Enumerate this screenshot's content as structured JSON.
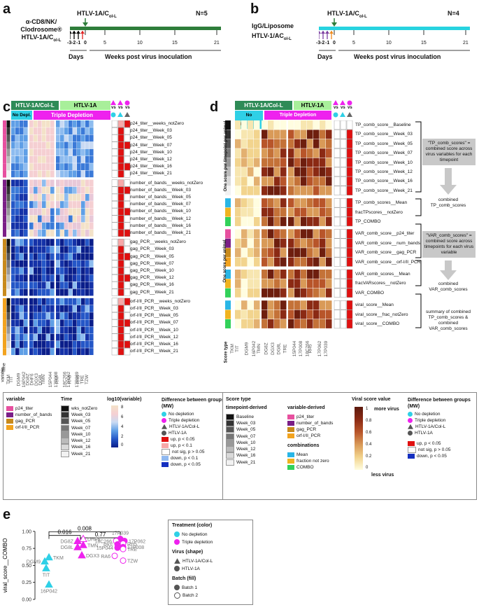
{
  "panel_a": {
    "letter": "a",
    "treatment_line1": "α-CD8/NK/",
    "treatment_line2": "Clodrosome®",
    "treatment_line3": "HTLV-1A/C",
    "treatment_line3_sub": "ol-L",
    "virus_label": "HTLV-1A/C",
    "virus_sub": "ol-L",
    "n": "N=5",
    "ticks_days": [
      "-3",
      "-2",
      "-1",
      "0"
    ],
    "ticks_weeks": [
      "5",
      "10",
      "15",
      "21"
    ],
    "days_label": "Days",
    "weeks_label": "Weeks post virus inoculation",
    "bar_color": "#2e7d3a"
  },
  "panel_b": {
    "letter": "b",
    "treatment_line1": "IgG/Liposome",
    "treatment_line2": "HTLV-1/AC",
    "treatment_line2_sub": "ol-L",
    "virus_label": "HTLV-1A/C",
    "virus_sub": "ol-L",
    "n": "N=4",
    "ticks_days": [
      "-3",
      "-2",
      "-1",
      "0"
    ],
    "ticks_weeks": [
      "5",
      "10",
      "15",
      "21"
    ],
    "days_label": "Days",
    "weeks_label": "Weeks post virus inoculation",
    "bar_color": "#27d3e0"
  },
  "panel_c": {
    "letter": "c",
    "header_virus1": "HTLV-1A/Col-L",
    "header_virus2": "HTLV-1A",
    "header_nodepl": "No Depl.",
    "header_triple": "Triple Depletion",
    "vs_labels": [
      "vs",
      "vs",
      "vs"
    ],
    "row_labels": [
      "p24_titer__weeks_notZero",
      "p24_titer__Week_03",
      "p24_titer__Week_05",
      "p24_titer__Week_07",
      "p24_titer__Week_10",
      "p24_titer__Week_12",
      "p24_titer__Week_16",
      "p24_titer__Week_21",
      "number_of_bands__weeks_notZero",
      "number_of_bands__Week_03",
      "number_of_bands__Week_05",
      "number_of_bands__Week_07",
      "number_of_bands__Week_10",
      "number_of_bands__Week_12",
      "number_of_bands__Week_16",
      "number_of_bands__Week_21",
      "gag_PCR__weeks_notZero",
      "gag_PCR__Week_03",
      "gag_PCR__Week_05",
      "gag_PCR__Week_07",
      "gag_PCR__Week_10",
      "gag_PCR__Week_12",
      "gag_PCR__Week_16",
      "gag_PCR__Week_21",
      "orf-I/II_PCR__weeks_notZero",
      "orf-I/II_PCR__Week_03",
      "orf-I/II_PCR__Week_05",
      "orf-I/II_PCR__Week_07",
      "orf-I/II_PCR__Week_10",
      "orf-I/II_PCR__Week_12",
      "orf-I/II_PCR__Week_16",
      "orf-I/II_PCR__Week_21"
    ],
    "col_labels": [
      "TKM",
      "TIT",
      "DGM9",
      "16P042",
      "DG8Z",
      "DHF6",
      "DGX3",
      "DG8L",
      "TMN",
      "15P044",
      "17P008",
      "RKF",
      "18C266",
      "17P062",
      "RA6",
      "17P039",
      "RH5",
      "TRE",
      "TZW"
    ],
    "side_labels": [
      "variable",
      "Time"
    ],
    "legend": {
      "variable_title": "variable",
      "variable_items": [
        "p24_titer",
        "number_of_bands",
        "gag_PCR",
        "orf-I/II_PCR"
      ],
      "variable_colors": [
        "#e7509f",
        "#7b1f87",
        "#c88a1c",
        "#f2a31f"
      ],
      "time_title": "Time",
      "time_items": [
        "wks_notZero",
        "Week_03",
        "Week_05",
        "Week_07",
        "Week_10",
        "Week_12",
        "Week_16",
        "Week_21"
      ],
      "time_colors": [
        "#111111",
        "#333333",
        "#555555",
        "#777777",
        "#999999",
        "#bbbbbb",
        "#d9d9d9",
        "#f2f2f2"
      ],
      "scale_title": "log10(variable)",
      "scale_ticks": [
        "8",
        "6",
        "4",
        "2",
        "0"
      ],
      "diff_title": "Difference between groups (MW)",
      "diff_items": [
        "No depletion",
        "Triple depletion",
        "HTLV-1A/Col-L",
        "HTLV-1A",
        "up, p < 0.05",
        "up, p < 0.1",
        "not sig, p > 0.05",
        "down, p < 0.1",
        "down, p < 0.05"
      ]
    }
  },
  "panel_d": {
    "letter": "d",
    "header_virus1": "HTLV-1A/Col-L",
    "header_virus2": "HTLV-1A",
    "header_nodepl": "No Depletion",
    "header_triple": "Triple Depletion",
    "vs_labels": [
      "vs",
      "vs",
      "vs"
    ],
    "group_labels": [
      "One score per timepoint per animal",
      "One score per animal"
    ],
    "row_labels": [
      "TP_comb_score__Baseline",
      "TP_comb_score__Week_03",
      "TP_comb_score__Week_05",
      "TP_comb_score__Week_07",
      "TP_comb_score__Week_10",
      "TP_comb_score__Week_12",
      "TP_comb_score__Week_16",
      "TP_comb_score__Week_21",
      "TP_comb_scores__Mean",
      "fracTPscores__notZero",
      "TP_COMBO",
      "VAR_comb_score__p24_titer",
      "VAR_comb_score__num_bands",
      "VAR_comb_score__gag_PCR",
      "VAR_comb_score__orf-I/II_PCR",
      "VAR_comb_scores__Mean",
      "fracVARscores__notZero",
      "VAR_COMBO",
      "viral_score__Mean",
      "viral_score__frac_notZero",
      "viral_score__COMBO"
    ],
    "col_labels": [
      "TKM",
      "TIT",
      "DGM9",
      "16P042",
      "TMN",
      "DG8Z",
      "DGX3",
      "DG8L",
      "TRE",
      "15P044",
      "17P008",
      "18C266",
      "RH5",
      "17P062",
      "17P039"
    ],
    "score_type_label": "Score type",
    "annot1_text": "\"TP_comb_scores\" = combined score across virus variables for each timepoint",
    "annot1_result": "combined TP_comb_scores",
    "annot2_text": "\"VAR_comb_scores\" = combined score across timepoints for each virus variable",
    "annot2_result": "combined VAR_comb_scores",
    "annot3_result": "summary of combined TP_comb_scores & combined VAR_comb_scores",
    "legend": {
      "score_type_title": "Score type",
      "timepoint_title": "timepoint-derived",
      "timepoint_items": [
        "Baseline",
        "Week_03",
        "Week_05",
        "Week_07",
        "Week_10",
        "Week_12",
        "Week_16",
        "Week_21"
      ],
      "variable_title": "variable-derived",
      "variable_items": [
        "p24_titer",
        "number_of_bands",
        "gag_PCR",
        "orf-I/II_PCR"
      ],
      "combo_title": "combinations",
      "combo_items": [
        "Mean",
        "fraction not zero",
        "COMBO"
      ],
      "combo_colors": [
        "#29b6e6",
        "#f0b31f",
        "#33d15a"
      ],
      "scale_title": "Viral score value",
      "scale_more": "more virus",
      "scale_less": "less virus",
      "scale_ticks": [
        "1",
        "0.8",
        "0.6",
        "0.4",
        "0.2",
        "0"
      ],
      "diff_title": "Difference between groups (MW)",
      "diff_items": [
        "No depletion",
        "Triple depletion",
        "HTLV-1A/Col-L",
        "HTLV-1A",
        "up, p < 0.05",
        "not sig, p > 0.05",
        "down, p < 0.05"
      ]
    }
  },
  "panel_e": {
    "letter": "e",
    "ylabel": "viral_score__COMBO",
    "yticks": [
      "0.00",
      "0.25",
      "0.50",
      "0.75",
      "1.00"
    ],
    "brackets": [
      "0.008",
      "0.016",
      "0.77"
    ],
    "legend_treatment_title": "Treatment (color)",
    "legend_treatment": [
      "No depletion",
      "Triple depletion"
    ],
    "legend_virus_title": "Virus (shape)",
    "legend_virus": [
      "HTLV-1A/Col-L",
      "HTLV-1A"
    ],
    "legend_batch_title": "Batch (fill)",
    "legend_batch": [
      "Batch 1",
      "Batch 2"
    ]
  },
  "chart_data": {
    "type": "scatter",
    "ylabel": "viral_score__COMBO",
    "ylim": [
      0,
      1.05
    ],
    "groups": [
      "No depletion / HTLV-1A/Col-L",
      "Triple depletion / HTLV-1A/Col-L",
      "Triple depletion / HTLV-1A"
    ],
    "points": [
      {
        "label": "TKM",
        "group": 0,
        "y": 0.62,
        "shape": "triangle",
        "color": "cyan",
        "fill": "solid"
      },
      {
        "label": "DGM9",
        "group": 0,
        "y": 0.56,
        "shape": "triangle",
        "color": "cyan",
        "fill": "solid"
      },
      {
        "label": "TIT",
        "group": 0,
        "y": 0.46,
        "shape": "triangle",
        "color": "cyan",
        "fill": "solid"
      },
      {
        "label": "16P042",
        "group": 0,
        "y": 0.22,
        "shape": "triangle",
        "color": "cyan",
        "fill": "solid"
      },
      {
        "label": "DHF6",
        "group": 1,
        "y": 0.89,
        "shape": "triangle",
        "color": "magenta",
        "fill": "open"
      },
      {
        "label": "DG8Z",
        "group": 1,
        "y": 0.86,
        "shape": "triangle",
        "color": "magenta",
        "fill": "solid"
      },
      {
        "label": "TMN",
        "group": 1,
        "y": 0.8,
        "shape": "triangle",
        "color": "magenta",
        "fill": "solid"
      },
      {
        "label": "DG8L",
        "group": 1,
        "y": 0.77,
        "shape": "triangle",
        "color": "magenta",
        "fill": "solid"
      },
      {
        "label": "DGX3",
        "group": 1,
        "y": 0.65,
        "shape": "triangle",
        "color": "magenta",
        "fill": "solid"
      },
      {
        "label": "17P039",
        "group": 2,
        "y": 0.89,
        "shape": "circle",
        "color": "magenta",
        "fill": "solid"
      },
      {
        "label": "17P062",
        "group": 2,
        "y": 0.86,
        "shape": "circle",
        "color": "magenta",
        "fill": "solid"
      },
      {
        "label": "18C266",
        "group": 2,
        "y": 0.86,
        "shape": "circle",
        "color": "magenta",
        "fill": "open"
      },
      {
        "label": "RH5",
        "group": 2,
        "y": 0.82,
        "shape": "circle",
        "color": "magenta",
        "fill": "open"
      },
      {
        "label": "RKF",
        "group": 2,
        "y": 0.81,
        "shape": "circle",
        "color": "magenta",
        "fill": "solid"
      },
      {
        "label": "17P008",
        "group": 2,
        "y": 0.77,
        "shape": "circle",
        "color": "magenta",
        "fill": "solid"
      },
      {
        "label": "15P044",
        "group": 2,
        "y": 0.76,
        "shape": "circle",
        "color": "magenta",
        "fill": "solid"
      },
      {
        "label": "TRE",
        "group": 2,
        "y": 0.74,
        "shape": "circle",
        "color": "magenta",
        "fill": "open"
      },
      {
        "label": "RA6",
        "group": 2,
        "y": 0.64,
        "shape": "circle",
        "color": "magenta",
        "fill": "open"
      },
      {
        "label": "TZW",
        "group": 2,
        "y": 0.57,
        "shape": "circle",
        "color": "magenta",
        "fill": "open"
      }
    ]
  }
}
